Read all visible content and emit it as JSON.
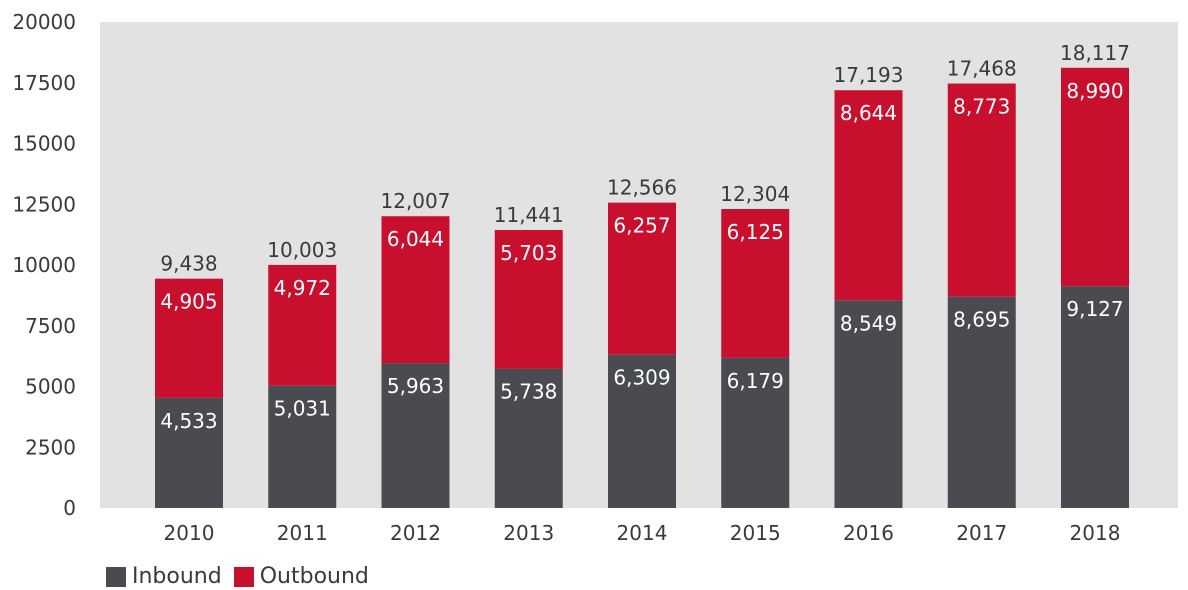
{
  "chart_data": {
    "type": "bar",
    "stacked": true,
    "categories": [
      "2010",
      "2011",
      "2012",
      "2013",
      "2014",
      "2015",
      "2016",
      "2017",
      "2018"
    ],
    "series": [
      {
        "name": "Inbound",
        "color": "#4a4b50",
        "values": [
          4533,
          5031,
          5963,
          5738,
          6309,
          6179,
          8549,
          8695,
          9127
        ],
        "labels": [
          "4,533",
          "5,031",
          "5,963",
          "5,738",
          "6,309",
          "6,179",
          "8,549",
          "8,695",
          "9,127"
        ]
      },
      {
        "name": "Outbound",
        "color": "#c8102e",
        "values": [
          4905,
          4972,
          6044,
          5703,
          6257,
          6125,
          8644,
          8773,
          8990
        ],
        "labels": [
          "4,905",
          "4,972",
          "6,044",
          "5,703",
          "6,257",
          "6,125",
          "8,644",
          "8,773",
          "8,990"
        ]
      }
    ],
    "totals": [
      "9,438",
      "10,003",
      "12,007",
      "11,441",
      "12,566",
      "12,304",
      "17,193",
      "17,468",
      "18,117"
    ],
    "ylim": [
      0,
      20000
    ],
    "yticks": [
      "0",
      "2500",
      "5000",
      "7500",
      "10000",
      "12500",
      "15000",
      "17500",
      "20000"
    ],
    "grid": false,
    "plot_background": "#e2e2e2",
    "legend_position": "bottom-left",
    "title": "",
    "xlabel": "",
    "ylabel": ""
  }
}
